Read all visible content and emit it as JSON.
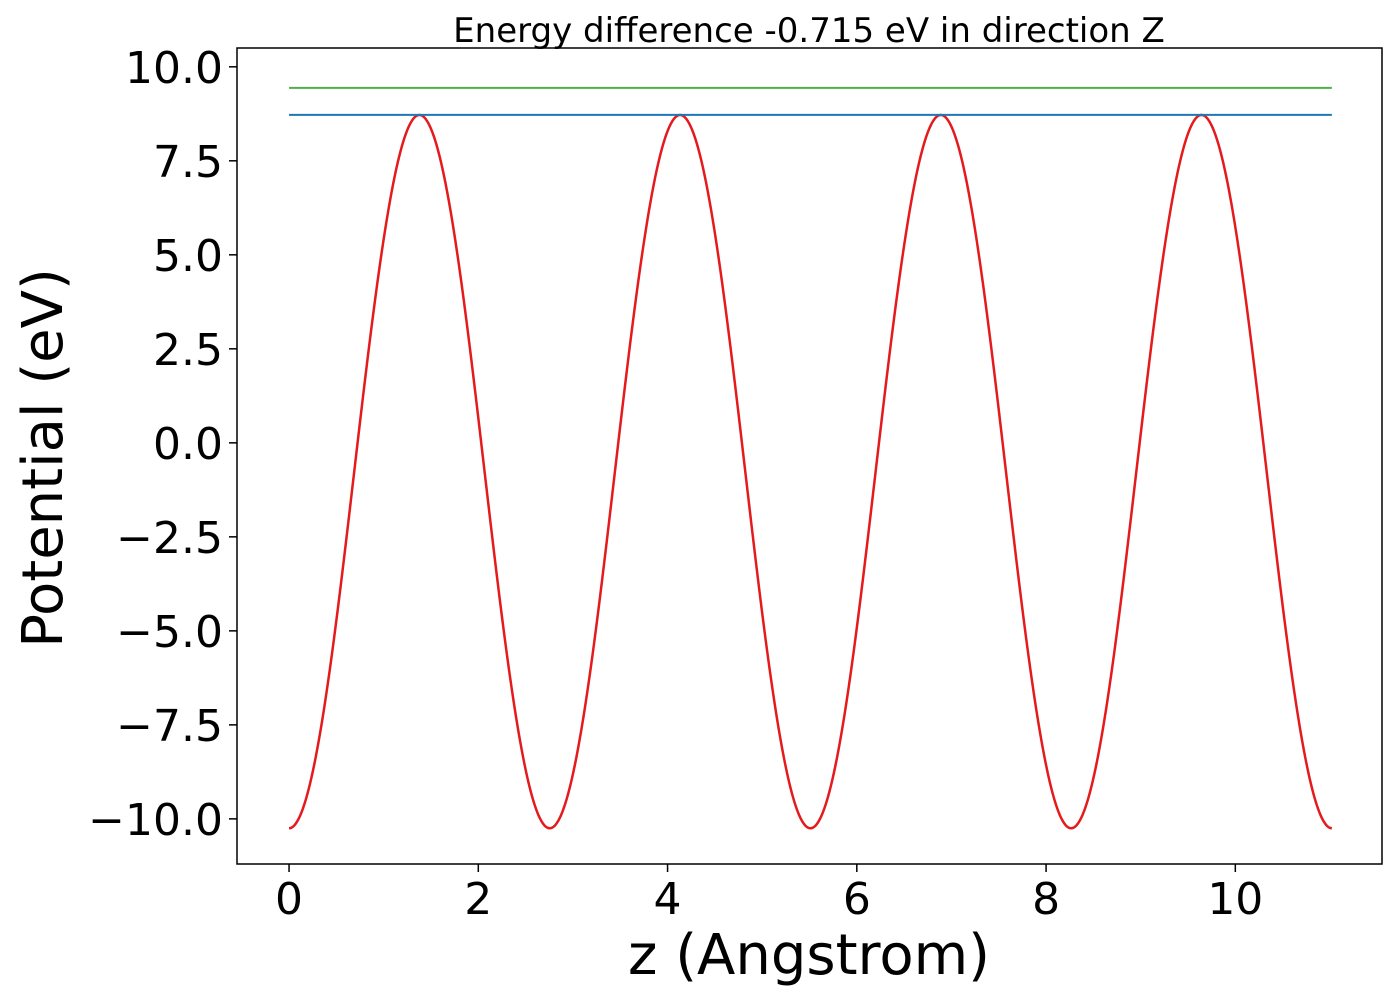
{
  "chart_data": {
    "type": "line",
    "title": "Energy difference -0.715 eV in direction Z",
    "xlabel": "z (Angstrom)",
    "ylabel": "Potential (eV)",
    "xlim": [
      -0.55,
      11.55
    ],
    "ylim": [
      -11.2,
      10.5
    ],
    "x_ticks": [
      0,
      2,
      4,
      6,
      8,
      10
    ],
    "x_tick_labels": [
      "0",
      "2",
      "4",
      "6",
      "8",
      "10"
    ],
    "y_ticks": [
      -10.0,
      -7.5,
      -5.0,
      -2.5,
      0.0,
      2.5,
      5.0,
      7.5,
      10.0
    ],
    "y_tick_labels": [
      "−10.0",
      "−7.5",
      "−5.0",
      "−2.5",
      "0.0",
      "2.5",
      "5.0",
      "7.5",
      "10.0"
    ],
    "grid": false,
    "series": [
      {
        "color": "#e41a1c",
        "style": "cosine",
        "x_range": [
          0,
          11.02
        ],
        "period": 2.755,
        "min": -10.25,
        "max": 8.72
      },
      {
        "color": "#1f77b4",
        "style": "hline",
        "x_range": [
          0,
          11.02
        ],
        "y": 8.72
      },
      {
        "color": "#4daf4a",
        "style": "hline",
        "x_range": [
          0,
          11.02
        ],
        "y": 9.44
      }
    ]
  }
}
